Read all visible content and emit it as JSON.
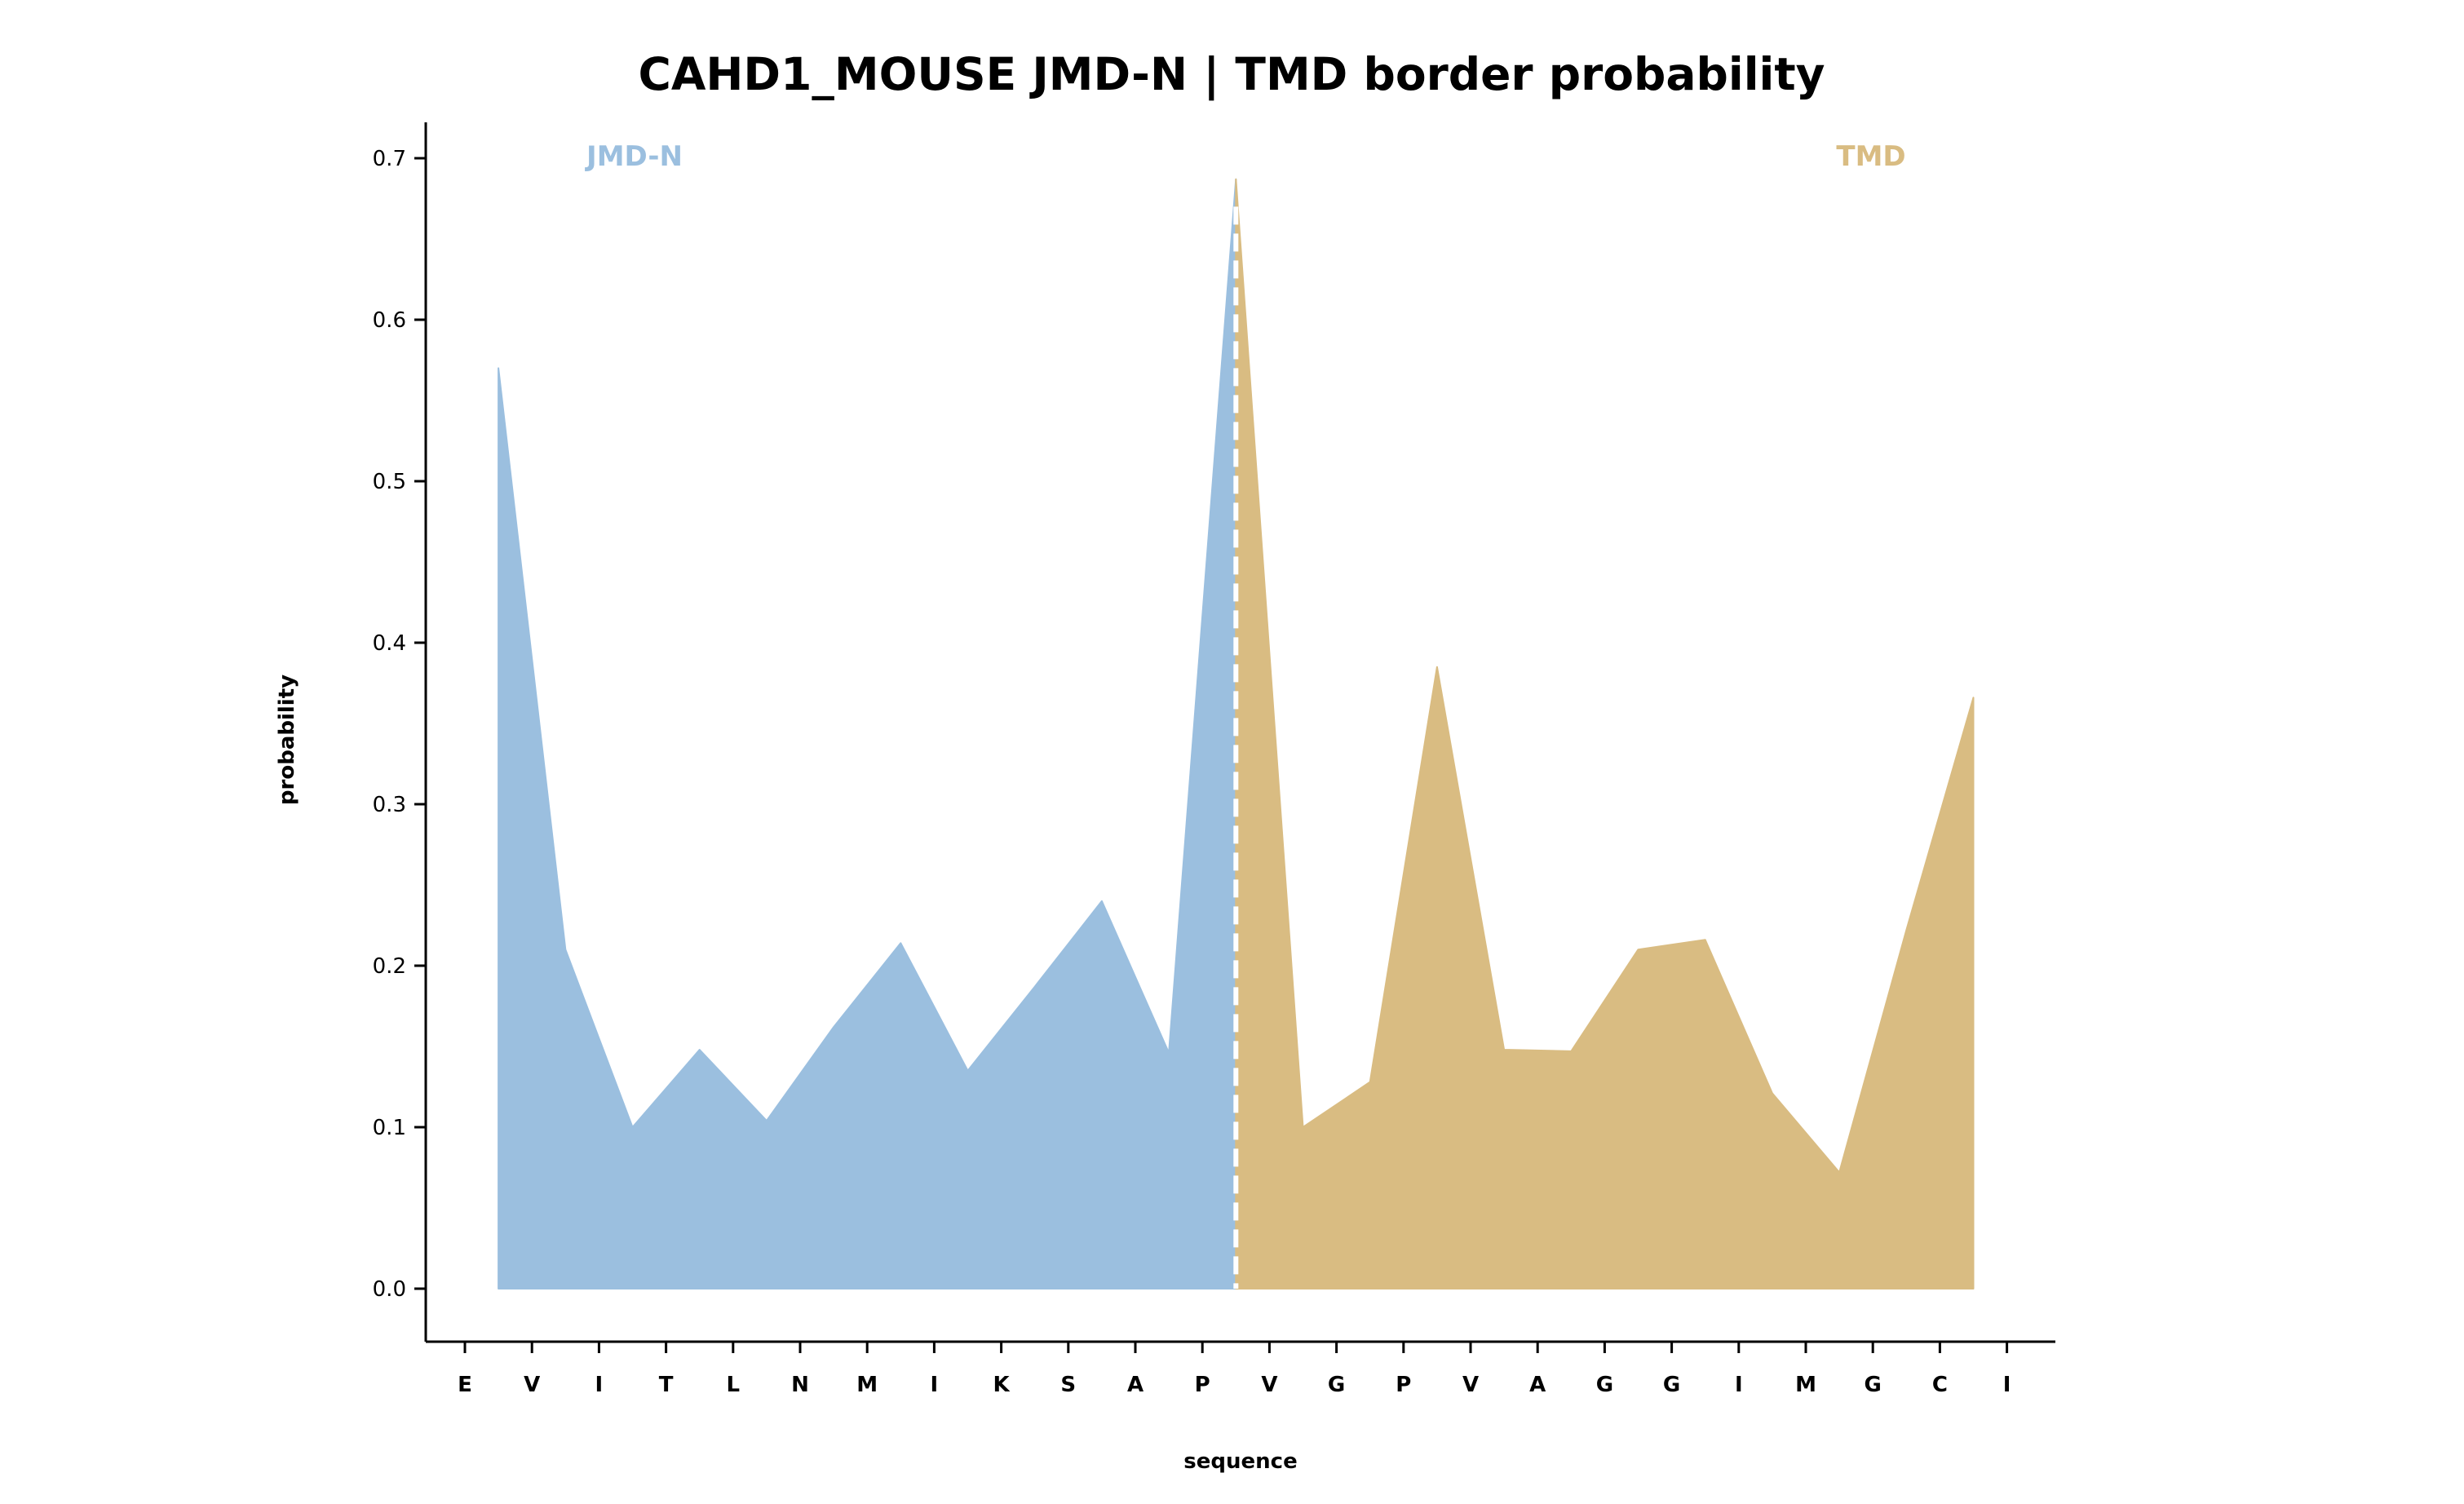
{
  "chart_data": {
    "type": "area",
    "title": "CAHD1_MOUSE JMD-N | TMD border probability",
    "xlabel": "sequence",
    "ylabel": "probability",
    "ylim": [
      -0.03,
      0.72
    ],
    "yticks": [
      "0.0",
      "0.1",
      "0.2",
      "0.3",
      "0.4",
      "0.5",
      "0.6",
      "0.7"
    ],
    "categories": [
      "E",
      "V",
      "I",
      "T",
      "L",
      "N",
      "M",
      "I",
      "K",
      "S",
      "A",
      "P",
      "V",
      "G",
      "P",
      "V",
      "A",
      "G",
      "G",
      "I",
      "M",
      "G",
      "C",
      "I"
    ],
    "grid": false,
    "series": [
      {
        "name": "JMD-N",
        "color": "#9bbfdf",
        "x": [
          0.5,
          1.5,
          2.5,
          3.5,
          4.5,
          5.5,
          6.5,
          7.5,
          8.5,
          9.5,
          10.5,
          11.5
        ],
        "values": [
          0.57,
          0.21,
          0.1,
          0.148,
          0.104,
          0.162,
          0.214,
          0.135,
          0.187,
          0.24,
          0.146,
          0.687
        ]
      },
      {
        "name": "TMD",
        "color": "#d9bc82",
        "x": [
          11.5,
          12.5,
          13.5,
          14.5,
          15.5,
          16.5,
          17.5,
          18.5,
          19.5,
          20.5,
          21.5,
          22.5
        ],
        "values": [
          0.687,
          0.1,
          0.128,
          0.385,
          0.148,
          0.147,
          0.21,
          0.216,
          0.121,
          0.072,
          0.222,
          0.366
        ]
      }
    ],
    "border_x": 11.5,
    "border_line_color": "#ffffff",
    "annotations": {
      "left_region": "JMD-N",
      "right_region": "TMD"
    }
  }
}
